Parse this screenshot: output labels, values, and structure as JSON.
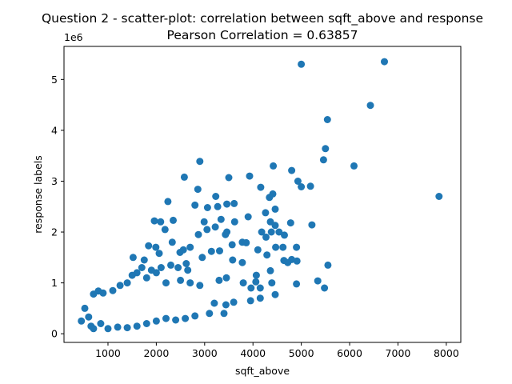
{
  "chart_data": {
    "type": "scatter",
    "title": "Question 2 - scatter-plot: correlation between sqft_above and response",
    "subtitle": "Pearson Correlation = 0.63857",
    "xlabel": "sqft_above",
    "ylabel": "response labels",
    "y_offset_label": "1e6",
    "xlim": [
      90,
      8300
    ],
    "ylim": [
      -170000,
      5650000
    ],
    "x_ticks": [
      1000,
      2000,
      3000,
      4000,
      5000,
      6000,
      7000,
      8000
    ],
    "y_ticks": [
      0,
      1000000,
      2000000,
      3000000,
      4000000,
      5000000
    ],
    "x_tick_labels": [
      "1000",
      "2000",
      "3000",
      "4000",
      "5000",
      "6000",
      "7000",
      "8000"
    ],
    "y_tick_labels": [
      "0",
      "1",
      "2",
      "3",
      "4",
      "5"
    ],
    "grid": false,
    "marker_color": "#1f77b4",
    "points": [
      [
        6720,
        5350000
      ],
      [
        5000,
        5300000
      ],
      [
        6430,
        4490000
      ],
      [
        5540,
        4210000
      ],
      [
        5500,
        3640000
      ],
      [
        5460,
        3420000
      ],
      [
        6090,
        3300000
      ],
      [
        4800,
        3210000
      ],
      [
        4930,
        3000000
      ],
      [
        5000,
        2890000
      ],
      [
        5190,
        2900000
      ],
      [
        7850,
        2700000
      ],
      [
        4420,
        3300000
      ],
      [
        2900,
        3390000
      ],
      [
        3500,
        3070000
      ],
      [
        3930,
        3100000
      ],
      [
        2580,
        3080000
      ],
      [
        2860,
        2840000
      ],
      [
        4160,
        2880000
      ],
      [
        4340,
        2680000
      ],
      [
        4410,
        2750000
      ],
      [
        3610,
        2560000
      ],
      [
        3230,
        2700000
      ],
      [
        3460,
        2550000
      ],
      [
        2240,
        2600000
      ],
      [
        3270,
        2500000
      ],
      [
        2800,
        2530000
      ],
      [
        3060,
        2480000
      ],
      [
        4460,
        2450000
      ],
      [
        4260,
        2380000
      ],
      [
        3900,
        2300000
      ],
      [
        1960,
        2220000
      ],
      [
        2090,
        2200000
      ],
      [
        2350,
        2230000
      ],
      [
        2990,
        2200000
      ],
      [
        3340,
        2250000
      ],
      [
        3620,
        2200000
      ],
      [
        4360,
        2200000
      ],
      [
        4780,
        2180000
      ],
      [
        4460,
        2130000
      ],
      [
        5220,
        2140000
      ],
      [
        2180,
        2050000
      ],
      [
        3220,
        2100000
      ],
      [
        3050,
        2050000
      ],
      [
        2870,
        1950000
      ],
      [
        3460,
        2000000
      ],
      [
        3430,
        1950000
      ],
      [
        4180,
        2000000
      ],
      [
        4380,
        2000000
      ],
      [
        4270,
        1900000
      ],
      [
        4540,
        2000000
      ],
      [
        4650,
        1940000
      ],
      [
        1840,
        1730000
      ],
      [
        1990,
        1700000
      ],
      [
        2330,
        1800000
      ],
      [
        2560,
        1650000
      ],
      [
        2700,
        1700000
      ],
      [
        3140,
        1620000
      ],
      [
        3570,
        1750000
      ],
      [
        3780,
        1800000
      ],
      [
        3860,
        1790000
      ],
      [
        4100,
        1650000
      ],
      [
        4470,
        1700000
      ],
      [
        4620,
        1700000
      ],
      [
        4900,
        1700000
      ],
      [
        1520,
        1500000
      ],
      [
        1750,
        1450000
      ],
      [
        2060,
        1580000
      ],
      [
        2490,
        1600000
      ],
      [
        2620,
        1380000
      ],
      [
        2950,
        1500000
      ],
      [
        3310,
        1630000
      ],
      [
        3580,
        1450000
      ],
      [
        3780,
        1400000
      ],
      [
        4290,
        1550000
      ],
      [
        4640,
        1440000
      ],
      [
        4800,
        1460000
      ],
      [
        5550,
        1350000
      ],
      [
        4910,
        1430000
      ],
      [
        4720,
        1400000
      ],
      [
        3300,
        1050000
      ],
      [
        4070,
        1150000
      ],
      [
        4360,
        1240000
      ],
      [
        3450,
        1100000
      ],
      [
        3800,
        1000000
      ],
      [
        4060,
        1020000
      ],
      [
        4390,
        1000000
      ],
      [
        4900,
        980000
      ],
      [
        5340,
        1040000
      ],
      [
        5480,
        900000
      ],
      [
        4150,
        900000
      ],
      [
        3960,
        900000
      ],
      [
        4460,
        770000
      ],
      [
        4150,
        700000
      ],
      [
        3950,
        650000
      ],
      [
        3600,
        620000
      ],
      [
        3440,
        570000
      ],
      [
        3200,
        600000
      ],
      [
        3100,
        400000
      ],
      [
        3400,
        400000
      ],
      [
        2800,
        350000
      ],
      [
        2600,
        300000
      ],
      [
        2400,
        270000
      ],
      [
        1100,
        850000
      ],
      [
        1250,
        950000
      ],
      [
        1400,
        1000000
      ],
      [
        1800,
        1100000
      ],
      [
        2000,
        1200000
      ],
      [
        2200,
        1000000
      ],
      [
        2500,
        1050000
      ],
      [
        2700,
        1000000
      ],
      [
        2900,
        950000
      ],
      [
        1600,
        1200000
      ],
      [
        1700,
        1300000
      ],
      [
        2100,
        1300000
      ],
      [
        2300,
        1350000
      ],
      [
        1500,
        1150000
      ],
      [
        1900,
        1250000
      ],
      [
        2450,
        1300000
      ],
      [
        2650,
        1250000
      ],
      [
        700,
        780000
      ],
      [
        900,
        800000
      ],
      [
        800,
        840000
      ],
      [
        520,
        500000
      ],
      [
        450,
        250000
      ],
      [
        600,
        330000
      ],
      [
        650,
        150000
      ],
      [
        700,
        100000
      ],
      [
        850,
        200000
      ],
      [
        1000,
        100000
      ],
      [
        1200,
        130000
      ],
      [
        1400,
        120000
      ],
      [
        1600,
        150000
      ],
      [
        1800,
        200000
      ],
      [
        2000,
        250000
      ],
      [
        2200,
        300000
      ]
    ]
  }
}
